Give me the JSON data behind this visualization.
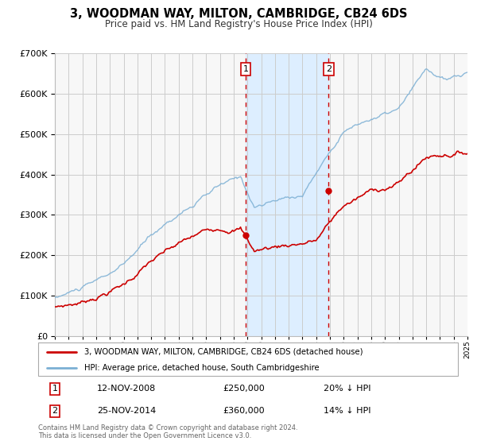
{
  "title": "3, WOODMAN WAY, MILTON, CAMBRIDGE, CB24 6DS",
  "subtitle": "Price paid vs. HM Land Registry's House Price Index (HPI)",
  "legend_line1": "3, WOODMAN WAY, MILTON, CAMBRIDGE, CB24 6DS (detached house)",
  "legend_line2": "HPI: Average price, detached house, South Cambridgeshire",
  "footnote1": "Contains HM Land Registry data © Crown copyright and database right 2024.",
  "footnote2": "This data is licensed under the Open Government Licence v3.0.",
  "sale1_date": "12-NOV-2008",
  "sale1_price": "£250,000",
  "sale1_hpi": "20% ↓ HPI",
  "sale1_year": 2008.87,
  "sale1_value": 250000,
  "sale2_date": "25-NOV-2014",
  "sale2_price": "£360,000",
  "sale2_hpi": "14% ↓ HPI",
  "sale2_year": 2014.9,
  "sale2_value": 360000,
  "ylim_min": 0,
  "ylim_max": 700000,
  "xlim_min": 1995,
  "xlim_max": 2025,
  "property_color": "#cc0000",
  "hpi_color": "#7bafd4",
  "shaded_region_color": "#ddeeff",
  "vline_color": "#cc0000",
  "grid_color": "#cccccc",
  "background_color": "#ffffff",
  "plot_bg_color": "#f7f7f7"
}
